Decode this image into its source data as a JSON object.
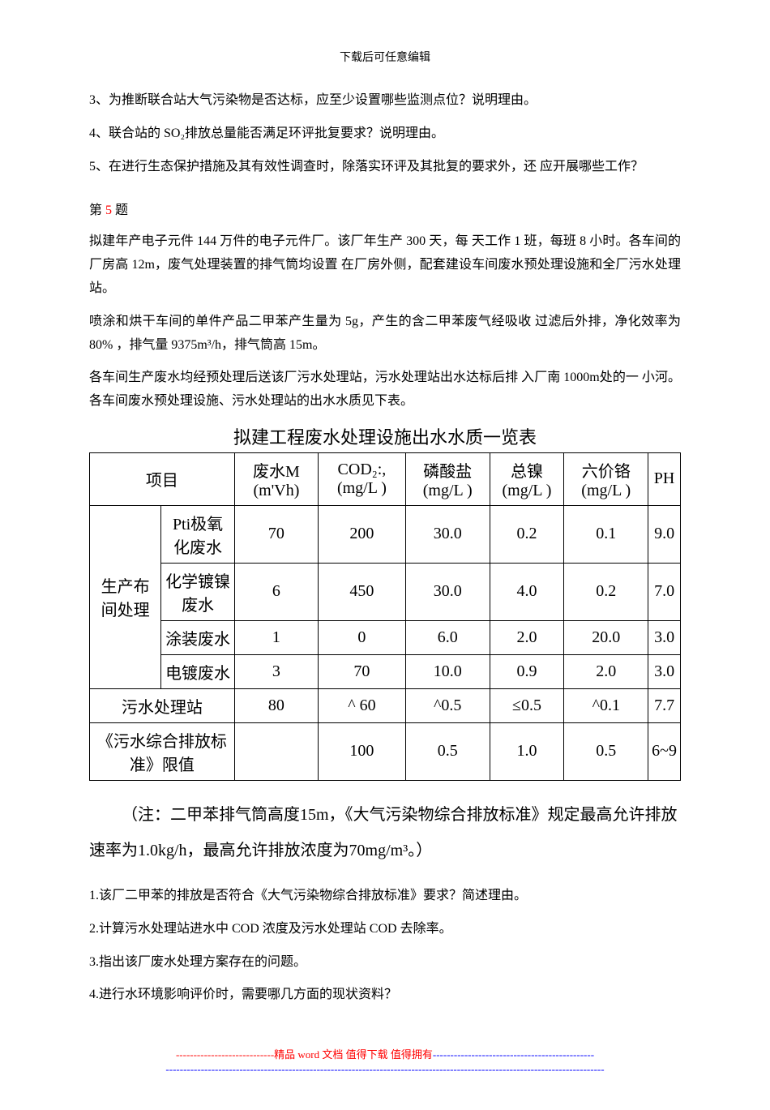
{
  "page": {
    "header_note": "下载后可任意编辑",
    "paragraphs": {
      "q3": "3、为推断联合站大气污染物是否达标，应至少设置哪些监测点位？说明理由。",
      "q4": "4、联合站的 SO₂排放总量能否满足环评批复要求？说明理由。",
      "q5": "5、在进行生态保护措施及其有效性调查时，除落实环评及其批复的要求外，还 应开展哪些工作？",
      "section5_label_prefix": "第 ",
      "section5_num": "5",
      "section5_label_suffix": " 题",
      "p1": "拟建年产电子元件 144 万件的电子元件厂。该厂年生产 300 天，每 天工作 1 班，每班  8 小时。各车间的厂房高 12m，废气处理装置的排气筒均设置 在厂房外侧，配套建设车间废水预处理设施和全厂污水处理站。",
      "p2": "喷涂和烘干车间的单件产品二甲苯产生量为 5g，产生的含二甲苯废气经吸收 过滤后外排，净化效率为 80% ，排气量 9375m³/h，排气筒高 15m。",
      "p3": "各车间生产废水均经预处理后送该厂污水处理站，污水处理站出水达标后排 入厂南 1000m处的一  小河。各车间废水预处理设施、污水处理站的出水水质见下表。",
      "table_title": "拟建工程废水处理设施出水水质一览表",
      "note": "（注：二甲苯排气筒高度15m，《大气污染物综合排放标准》规定最高允许排放速率为1.0kg/h，最高允许排放浓度为70mg/m³。）",
      "sq1": "1.该厂二甲苯的排放是否符合《大气污染物综合排放标准》要求？简述理由。",
      "sq2": "2.计算污水处理站进水中 COD 浓度及污水处理站 COD 去除率。",
      "sq3": "3.指出该厂废水处理方案存在的问题。",
      "sq4": "4.进行水环境影响评价时，需要哪几方面的现状资料？"
    },
    "table": {
      "headers": {
        "project": "项目",
        "wastewater": "废水M (m'Vh)",
        "cod": "COD₂:, (mg/L )",
        "phosphate": "磷酸盐 (mg/L )",
        "nickel": "总镍 (mg/L )",
        "chromium": "六价铬 (mg/L )",
        "ph": "PH"
      },
      "rowgroup_label": "生产布间处理",
      "rows": [
        {
          "name": "Pti极氧化废水",
          "ww": "70",
          "cod": "200",
          "phos": "30.0",
          "ni": "0.2",
          "cr": "0.1",
          "ph": "9.0"
        },
        {
          "name": "化学镀镍废水",
          "ww": "6",
          "cod": "450",
          "phos": "30.0",
          "ni": "4.0",
          "cr": "0.2",
          "ph": "7.0"
        },
        {
          "name": "涂装废水",
          "ww": "1",
          "cod": "0",
          "phos": "6.0",
          "ni": "2.0",
          "cr": "20.0",
          "ph": "3.0"
        },
        {
          "name": "电镀废水",
          "ww": "3",
          "cod": "70",
          "phos": "10.0",
          "ni": "0.9",
          "cr": "2.0",
          "ph": "3.0"
        }
      ],
      "station_row": {
        "name": "污水处理站",
        "ww": "80",
        "cod": "^ 60",
        "phos": "^0.5",
        "ni": "≤0.5",
        "cr": "^0.1",
        "ph": "7.7"
      },
      "standard_row": {
        "name": "《污水综合排放标准》限值",
        "ww": "",
        "cod": "100",
        "phos": "0.5",
        "ni": "1.0",
        "cr": "0.5",
        "ph": "6~9"
      }
    },
    "footer": {
      "line1_prefix": "----------------------------",
      "line1_mid": "精品 word 文档 值得下载 值得拥有",
      "line1_suffix": "----------------------------------------------",
      "line2": "-----------------------------------------------------------------------------------------------------------------------------"
    }
  }
}
